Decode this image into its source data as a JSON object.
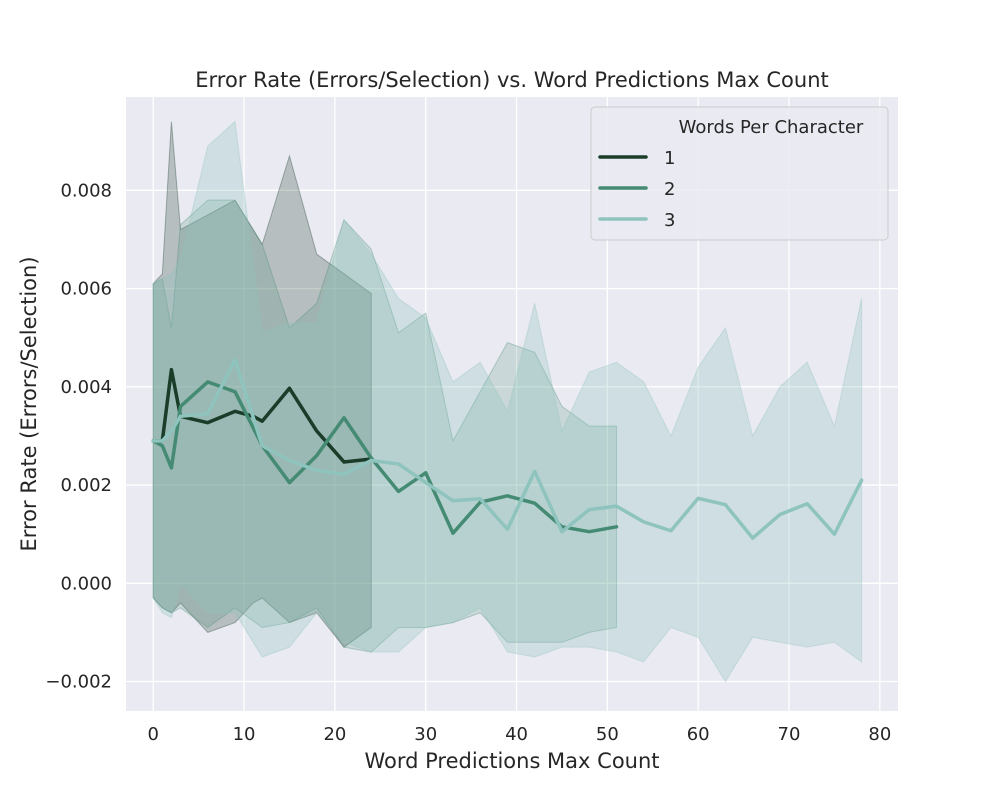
{
  "chart_data": {
    "type": "line",
    "title": "Error Rate (Errors/Selection) vs. Word Predictions Max Count",
    "xlabel": "Word Predictions Max Count",
    "ylabel": "Error Rate (Errors/Selection)",
    "xlim": [
      -3,
      82
    ],
    "ylim": [
      -0.0026,
      0.0099
    ],
    "xticks": [
      0,
      10,
      20,
      30,
      40,
      50,
      60,
      70,
      80
    ],
    "xtick_labels": [
      "0",
      "10",
      "20",
      "30",
      "40",
      "50",
      "60",
      "70",
      "80"
    ],
    "yticks": [
      -0.002,
      0.0,
      0.002,
      0.004,
      0.006,
      0.008
    ],
    "ytick_labels": [
      "−0.002",
      "0.000",
      "0.002",
      "0.004",
      "0.006",
      "0.008"
    ],
    "grid": true,
    "background": "#eaeaf2",
    "legend": {
      "title": "Words Per Character",
      "placement": "top-right"
    },
    "series": [
      {
        "name": "1",
        "color": "#1a3d2a",
        "band_opacity": 0.25,
        "x": [
          0,
          1,
          2,
          3,
          6,
          9,
          11,
          12,
          15,
          18,
          21,
          24
        ],
        "y": [
          0.0029,
          0.0029,
          0.00435,
          0.0034,
          0.00327,
          0.0035,
          0.0034,
          0.0033,
          0.00397,
          0.0031,
          0.00247,
          0.00253
        ],
        "lower": [
          -0.0003,
          -0.0005,
          -0.0006,
          -0.0004,
          -0.001,
          -0.0008,
          -0.0004,
          -0.0003,
          -0.0008,
          -0.0006,
          -0.0013,
          -0.0009
        ],
        "upper": [
          0.0061,
          0.0063,
          0.0094,
          0.0072,
          0.0075,
          0.0078,
          0.0072,
          0.0069,
          0.0087,
          0.0067,
          0.0063,
          0.0059
        ]
      },
      {
        "name": "2",
        "color": "#458b73",
        "band_opacity": 0.2,
        "x": [
          0,
          1,
          2,
          3,
          6,
          9,
          12,
          15,
          18,
          21,
          24,
          27,
          30,
          33,
          36,
          39,
          42,
          45,
          48,
          51
        ],
        "y": [
          0.0029,
          0.0028,
          0.00235,
          0.0036,
          0.0041,
          0.0039,
          0.0028,
          0.00205,
          0.0026,
          0.00337,
          0.00255,
          0.00187,
          0.00225,
          0.00102,
          0.00165,
          0.00178,
          0.00163,
          0.00115,
          0.00105,
          0.00115
        ],
        "lower": [
          -0.0003,
          -0.0005,
          -0.0006,
          -0.0005,
          -0.0009,
          -0.0005,
          -0.0009,
          -0.0008,
          -0.0005,
          -0.0013,
          -0.0014,
          -0.0009,
          -0.0009,
          -0.0008,
          -0.0006,
          -0.0012,
          -0.0012,
          -0.0012,
          -0.001,
          -0.0009
        ],
        "upper": [
          0.0061,
          0.0062,
          0.0052,
          0.0073,
          0.0078,
          0.0078,
          0.0069,
          0.0052,
          0.0057,
          0.0074,
          0.0068,
          0.0051,
          0.0055,
          0.0029,
          0.0039,
          0.0049,
          0.0047,
          0.0036,
          0.0032,
          0.0032
        ]
      },
      {
        "name": "3",
        "color": "#8ec4bd",
        "band_opacity": 0.3,
        "x": [
          0,
          1,
          2,
          3,
          6,
          9,
          12,
          15,
          18,
          21,
          24,
          27,
          30,
          33,
          36,
          39,
          42,
          45,
          48,
          51,
          54,
          57,
          60,
          63,
          66,
          69,
          72,
          75,
          78
        ],
        "y": [
          0.0029,
          0.0029,
          0.0031,
          0.0034,
          0.00345,
          0.00455,
          0.0028,
          0.0025,
          0.0023,
          0.00222,
          0.0025,
          0.00243,
          0.00205,
          0.00168,
          0.00172,
          0.0011,
          0.00228,
          0.00105,
          0.0015,
          0.00157,
          0.00125,
          0.00107,
          0.00173,
          0.0016,
          0.00092,
          0.0014,
          0.00162,
          0.001,
          0.0021
        ],
        "lower": [
          -0.0003,
          -0.0006,
          -0.0007,
          0.0,
          -0.0006,
          -0.0006,
          -0.0015,
          -0.0013,
          -0.0006,
          -0.0012,
          -0.0014,
          -0.0014,
          -0.0009,
          -0.0008,
          -0.0005,
          -0.0014,
          -0.0015,
          -0.0013,
          -0.0013,
          -0.0014,
          -0.0016,
          -0.0009,
          -0.0011,
          -0.002,
          -0.0011,
          -0.0012,
          -0.0013,
          -0.0012,
          -0.0016
        ],
        "upper": [
          0.0061,
          0.0062,
          0.0063,
          0.0066,
          0.0089,
          0.0094,
          0.0051,
          0.0053,
          0.0053,
          0.0074,
          0.0067,
          0.0058,
          0.0054,
          0.0041,
          0.0045,
          0.0035,
          0.0057,
          0.0031,
          0.0043,
          0.0045,
          0.0041,
          0.003,
          0.0044,
          0.0052,
          0.003,
          0.004,
          0.0045,
          0.0032,
          0.0058
        ]
      }
    ]
  }
}
